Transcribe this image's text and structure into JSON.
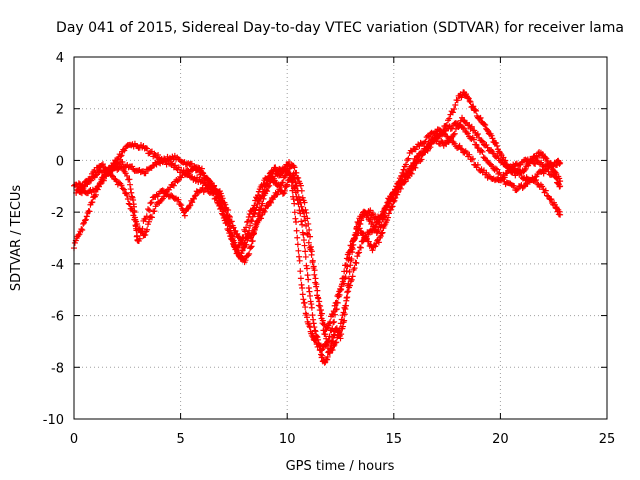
{
  "chart_data": {
    "type": "scatter",
    "title": "Day 041 of 2015, Sidereal Day-to-day VTEC variation (SDTVAR) for receiver lama",
    "xlabel": "GPS time / hours",
    "ylabel": "SDTVAR / TECUs",
    "xlim": [
      0,
      25
    ],
    "ylim": [
      -10,
      4
    ],
    "xticks": [
      0,
      5,
      10,
      15,
      20,
      25
    ],
    "yticks": [
      -10,
      -8,
      -6,
      -4,
      -2,
      0,
      2,
      4
    ],
    "grid": true,
    "marker": "+",
    "series": [
      {
        "name": "SDTVAR",
        "color": "#ff0000",
        "tracks": [
          [
            [
              0.0,
              -3.3
            ],
            [
              0.3,
              -2.8
            ],
            [
              0.6,
              -2.2
            ],
            [
              0.9,
              -1.5
            ],
            [
              1.2,
              -0.9
            ],
            [
              1.5,
              -0.5
            ],
            [
              1.8,
              -0.2
            ],
            [
              2.1,
              0.1
            ],
            [
              2.4,
              0.5
            ],
            [
              2.8,
              0.6
            ],
            [
              3.2,
              0.5
            ],
            [
              3.6,
              0.3
            ],
            [
              4.0,
              0.1
            ],
            [
              4.4,
              -0.1
            ],
            [
              4.8,
              -0.3
            ],
            [
              5.2,
              -0.5
            ],
            [
              5.6,
              -0.7
            ],
            [
              6.0,
              -0.8
            ],
            [
              6.4,
              -1.0
            ],
            [
              6.8,
              -1.4
            ],
            [
              7.0,
              -2.0
            ],
            [
              7.3,
              -2.6
            ],
            [
              7.5,
              -3.2
            ],
            [
              7.8,
              -3.7
            ],
            [
              8.0,
              -3.9
            ],
            [
              8.3,
              -3.4
            ],
            [
              8.5,
              -2.6
            ],
            [
              8.8,
              -1.7
            ],
            [
              9.1,
              -1.0
            ],
            [
              9.5,
              -0.5
            ],
            [
              9.8,
              -0.3
            ],
            [
              10.1,
              -0.5
            ],
            [
              10.4,
              -1.2
            ],
            [
              10.7,
              -2.5
            ],
            [
              10.9,
              -4.0
            ],
            [
              11.1,
              -5.5
            ],
            [
              11.3,
              -6.5
            ],
            [
              11.5,
              -7.2
            ],
            [
              11.7,
              -7.8
            ],
            [
              11.9,
              -7.6
            ],
            [
              12.1,
              -7.0
            ],
            [
              12.3,
              -6.5
            ],
            [
              12.5,
              -6.8
            ],
            [
              12.7,
              -6.0
            ],
            [
              12.9,
              -4.5
            ],
            [
              13.1,
              -3.2
            ],
            [
              13.3,
              -2.4
            ],
            [
              13.6,
              -2.0
            ],
            [
              13.9,
              -2.3
            ],
            [
              14.2,
              -2.8
            ],
            [
              14.5,
              -2.3
            ],
            [
              14.8,
              -1.5
            ],
            [
              15.2,
              -1.0
            ],
            [
              15.6,
              -0.6
            ],
            [
              16.0,
              -0.1
            ],
            [
              16.4,
              0.4
            ],
            [
              16.8,
              0.8
            ],
            [
              17.2,
              1.1
            ],
            [
              17.6,
              1.6
            ],
            [
              18.0,
              2.4
            ],
            [
              18.3,
              2.6
            ],
            [
              18.6,
              2.2
            ],
            [
              18.9,
              1.8
            ],
            [
              19.2,
              1.4
            ],
            [
              19.5,
              1.0
            ],
            [
              19.8,
              0.6
            ],
            [
              20.1,
              0.1
            ],
            [
              20.4,
              -0.3
            ],
            [
              20.7,
              -0.5
            ],
            [
              21.0,
              -0.4
            ],
            [
              21.3,
              -0.2
            ],
            [
              21.6,
              0.1
            ],
            [
              21.9,
              0.3
            ],
            [
              22.2,
              0.0
            ],
            [
              22.5,
              -0.4
            ],
            [
              22.8,
              -0.8
            ]
          ],
          [
            [
              0.0,
              -0.9
            ],
            [
              0.4,
              -1.0
            ],
            [
              0.8,
              -0.7
            ],
            [
              1.2,
              -0.4
            ],
            [
              1.6,
              -0.5
            ],
            [
              2.0,
              -0.8
            ],
            [
              2.4,
              -1.2
            ],
            [
              2.7,
              -1.9
            ],
            [
              3.0,
              -2.6
            ],
            [
              3.3,
              -2.9
            ],
            [
              3.6,
              -2.2
            ],
            [
              4.0,
              -1.6
            ],
            [
              4.4,
              -1.2
            ],
            [
              4.8,
              -0.8
            ],
            [
              5.2,
              -0.5
            ],
            [
              5.6,
              -0.3
            ],
            [
              6.0,
              -0.4
            ],
            [
              6.4,
              -0.9
            ],
            [
              6.8,
              -1.2
            ],
            [
              7.1,
              -1.7
            ],
            [
              7.4,
              -2.4
            ],
            [
              7.7,
              -3.0
            ],
            [
              8.0,
              -3.3
            ],
            [
              8.3,
              -2.9
            ],
            [
              8.6,
              -2.4
            ],
            [
              8.9,
              -2.0
            ],
            [
              9.2,
              -1.6
            ],
            [
              9.5,
              -1.3
            ],
            [
              9.8,
              -0.8
            ],
            [
              10.1,
              -0.3
            ],
            [
              10.3,
              -1.5
            ],
            [
              10.5,
              -3.2
            ],
            [
              10.7,
              -5.0
            ],
            [
              10.9,
              -6.0
            ],
            [
              11.1,
              -6.6
            ],
            [
              11.3,
              -7.0
            ],
            [
              11.6,
              -7.3
            ],
            [
              11.9,
              -7.0
            ],
            [
              12.2,
              -6.2
            ],
            [
              12.5,
              -5.0
            ],
            [
              12.8,
              -3.8
            ],
            [
              13.1,
              -3.0
            ],
            [
              13.4,
              -2.7
            ],
            [
              13.7,
              -3.0
            ],
            [
              14.0,
              -3.4
            ],
            [
              14.3,
              -3.1
            ],
            [
              14.6,
              -2.5
            ],
            [
              14.9,
              -1.8
            ],
            [
              15.2,
              -1.2
            ],
            [
              15.5,
              -0.8
            ],
            [
              15.9,
              -0.4
            ],
            [
              16.3,
              0.1
            ],
            [
              16.7,
              0.6
            ],
            [
              17.1,
              1.0
            ],
            [
              17.5,
              1.2
            ],
            [
              17.9,
              1.4
            ],
            [
              18.3,
              1.2
            ],
            [
              18.7,
              0.8
            ],
            [
              19.1,
              0.3
            ],
            [
              19.5,
              -0.1
            ],
            [
              19.9,
              -0.5
            ],
            [
              20.3,
              -0.9
            ],
            [
              20.7,
              -1.1
            ],
            [
              21.1,
              -1.0
            ],
            [
              21.5,
              -0.7
            ],
            [
              21.9,
              -1.0
            ],
            [
              22.3,
              -1.4
            ],
            [
              22.6,
              -1.8
            ],
            [
              22.8,
              -2.1
            ]
          ],
          [
            [
              0.2,
              -1.1
            ],
            [
              0.6,
              -1.3
            ],
            [
              1.0,
              -1.1
            ],
            [
              1.4,
              -0.7
            ],
            [
              1.8,
              -0.3
            ],
            [
              2.2,
              -0.3
            ],
            [
              2.6,
              -0.8
            ],
            [
              2.8,
              -1.7
            ],
            [
              2.9,
              -2.6
            ],
            [
              3.0,
              -3.2
            ],
            [
              3.3,
              -2.3
            ],
            [
              3.7,
              -1.5
            ],
            [
              4.1,
              -1.2
            ],
            [
              4.5,
              -1.4
            ],
            [
              4.9,
              -1.6
            ],
            [
              5.2,
              -2.1
            ],
            [
              5.5,
              -1.6
            ],
            [
              5.8,
              -1.2
            ],
            [
              6.2,
              -1.1
            ],
            [
              6.6,
              -1.4
            ],
            [
              6.9,
              -1.9
            ],
            [
              7.2,
              -2.6
            ],
            [
              7.5,
              -3.3
            ],
            [
              7.8,
              -3.8
            ],
            [
              8.0,
              -3.2
            ],
            [
              8.3,
              -2.4
            ],
            [
              8.6,
              -1.7
            ],
            [
              8.9,
              -1.2
            ],
            [
              9.2,
              -0.6
            ],
            [
              9.5,
              -0.9
            ],
            [
              9.8,
              -1.3
            ],
            [
              10.0,
              -0.9
            ],
            [
              10.3,
              -0.5
            ],
            [
              10.5,
              -1.2
            ],
            [
              10.8,
              -2.2
            ],
            [
              11.1,
              -3.5
            ],
            [
              11.4,
              -5.2
            ],
            [
              11.7,
              -6.5
            ],
            [
              12.0,
              -7.5
            ],
            [
              12.3,
              -7.0
            ],
            [
              12.6,
              -6.0
            ],
            [
              12.9,
              -5.0
            ],
            [
              13.2,
              -4.0
            ],
            [
              13.5,
              -3.2
            ],
            [
              13.8,
              -2.8
            ],
            [
              14.1,
              -2.6
            ],
            [
              14.4,
              -2.2
            ],
            [
              14.7,
              -1.6
            ],
            [
              15.0,
              -1.2
            ],
            [
              15.4,
              -0.7
            ],
            [
              15.8,
              -0.2
            ],
            [
              16.2,
              0.2
            ],
            [
              16.6,
              0.5
            ],
            [
              17.0,
              0.8
            ],
            [
              17.4,
              0.6
            ],
            [
              17.8,
              1.0
            ],
            [
              18.2,
              1.6
            ],
            [
              18.6,
              1.3
            ],
            [
              19.0,
              0.9
            ],
            [
              19.4,
              0.5
            ],
            [
              19.8,
              0.2
            ],
            [
              20.2,
              -0.2
            ],
            [
              20.6,
              -0.3
            ],
            [
              21.0,
              -0.6
            ],
            [
              21.4,
              -0.8
            ],
            [
              21.8,
              -0.5
            ],
            [
              22.2,
              -0.4
            ],
            [
              22.6,
              -0.7
            ],
            [
              22.8,
              -1.0
            ]
          ],
          [
            [
              0.1,
              -1.2
            ],
            [
              0.5,
              -1.0
            ],
            [
              0.9,
              -0.5
            ],
            [
              1.3,
              -0.2
            ],
            [
              1.7,
              -0.4
            ],
            [
              2.1,
              -0.1
            ],
            [
              2.5,
              -0.2
            ],
            [
              2.9,
              -0.4
            ],
            [
              3.3,
              -0.5
            ],
            [
              3.7,
              -0.2
            ],
            [
              4.1,
              0.0
            ],
            [
              4.5,
              0.1
            ],
            [
              4.9,
              0.1
            ],
            [
              5.3,
              -0.1
            ],
            [
              5.7,
              -0.3
            ],
            [
              6.1,
              -0.6
            ],
            [
              6.5,
              -1.0
            ],
            [
              6.9,
              -1.5
            ],
            [
              7.2,
              -2.2
            ],
            [
              7.4,
              -2.9
            ],
            [
              7.6,
              -3.5
            ],
            [
              7.9,
              -3.0
            ],
            [
              8.2,
              -2.2
            ],
            [
              8.5,
              -1.6
            ],
            [
              8.8,
              -1.0
            ],
            [
              9.1,
              -0.6
            ],
            [
              9.4,
              -0.3
            ],
            [
              9.7,
              -0.6
            ],
            [
              10.0,
              -0.1
            ],
            [
              10.3,
              -0.2
            ],
            [
              10.6,
              -0.9
            ],
            [
              10.9,
              -2.0
            ],
            [
              11.2,
              -3.8
            ],
            [
              11.5,
              -5.5
            ],
            [
              11.8,
              -6.6
            ],
            [
              12.1,
              -6.0
            ],
            [
              12.4,
              -5.2
            ],
            [
              12.7,
              -4.6
            ],
            [
              13.0,
              -3.4
            ],
            [
              13.3,
              -2.6
            ],
            [
              13.6,
              -2.1
            ],
            [
              13.9,
              -2.0
            ],
            [
              14.2,
              -2.3
            ],
            [
              14.6,
              -1.9
            ],
            [
              15.0,
              -1.4
            ],
            [
              15.4,
              -0.4
            ],
            [
              15.8,
              0.3
            ],
            [
              16.2,
              0.6
            ],
            [
              16.6,
              0.9
            ],
            [
              17.0,
              1.2
            ],
            [
              17.4,
              1.0
            ],
            [
              17.8,
              0.7
            ],
            [
              18.2,
              0.4
            ],
            [
              18.6,
              0.1
            ],
            [
              19.0,
              -0.3
            ],
            [
              19.4,
              -0.6
            ],
            [
              19.8,
              -0.8
            ],
            [
              20.2,
              -0.6
            ],
            [
              20.6,
              -0.2
            ],
            [
              21.0,
              -0.1
            ],
            [
              21.4,
              0.0
            ],
            [
              21.8,
              -0.1
            ],
            [
              22.2,
              -0.2
            ],
            [
              22.6,
              -0.1
            ],
            [
              22.8,
              -0.1
            ]
          ]
        ]
      }
    ]
  }
}
